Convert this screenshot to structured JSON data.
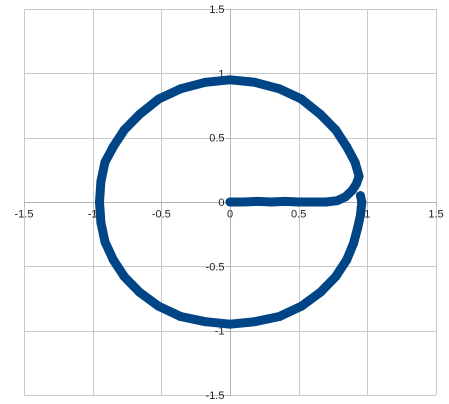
{
  "chart_data": {
    "type": "scatter",
    "title": "",
    "xlabel": "",
    "ylabel": "",
    "xlim": [
      -1.5,
      1.5
    ],
    "ylim": [
      -1.5,
      1.5
    ],
    "grid": true,
    "legend": "none",
    "x_ticks": [
      "-1.5",
      "-1",
      "-0.5",
      "0",
      "0.5",
      "1",
      "1.5"
    ],
    "y_ticks": [
      "1.5",
      "1",
      "0.5",
      "0",
      "-0.5",
      "-1",
      "-1.5"
    ],
    "series": [
      {
        "color": "#004586",
        "points": [
          [
            0.0,
            0.0
          ],
          [
            0.1,
            0.0
          ],
          [
            0.2,
            0.005
          ],
          [
            0.3,
            0.0
          ],
          [
            0.4,
            0.005
          ],
          [
            0.5,
            0.0
          ],
          [
            0.6,
            0.0
          ],
          [
            0.7,
            0.0
          ],
          [
            0.78,
            0.01
          ],
          [
            0.84,
            0.04
          ],
          [
            0.89,
            0.09
          ],
          [
            0.92,
            0.14
          ],
          [
            0.94,
            0.2
          ],
          [
            0.91,
            0.31
          ],
          [
            0.85,
            0.43
          ],
          [
            0.77,
            0.56
          ],
          [
            0.66,
            0.68
          ],
          [
            0.52,
            0.8
          ],
          [
            0.36,
            0.88
          ],
          [
            0.18,
            0.93
          ],
          [
            0.0,
            0.95
          ],
          [
            -0.18,
            0.93
          ],
          [
            -0.36,
            0.88
          ],
          [
            -0.52,
            0.8
          ],
          [
            -0.66,
            0.68
          ],
          [
            -0.77,
            0.56
          ],
          [
            -0.85,
            0.43
          ],
          [
            -0.91,
            0.31
          ],
          [
            -0.94,
            0.16
          ],
          [
            -0.95,
            0.0
          ],
          [
            -0.94,
            -0.16
          ],
          [
            -0.91,
            -0.31
          ],
          [
            -0.85,
            -0.45
          ],
          [
            -0.77,
            -0.58
          ],
          [
            -0.66,
            -0.7
          ],
          [
            -0.52,
            -0.81
          ],
          [
            -0.36,
            -0.89
          ],
          [
            -0.18,
            -0.93
          ],
          [
            0.0,
            -0.95
          ],
          [
            0.18,
            -0.93
          ],
          [
            0.36,
            -0.89
          ],
          [
            0.52,
            -0.81
          ],
          [
            0.66,
            -0.7
          ],
          [
            0.77,
            -0.58
          ],
          [
            0.85,
            -0.45
          ],
          [
            0.9,
            -0.32
          ],
          [
            0.93,
            -0.2
          ],
          [
            0.95,
            -0.1
          ],
          [
            0.96,
            0.0
          ],
          [
            0.95,
            0.05
          ]
        ]
      }
    ]
  }
}
